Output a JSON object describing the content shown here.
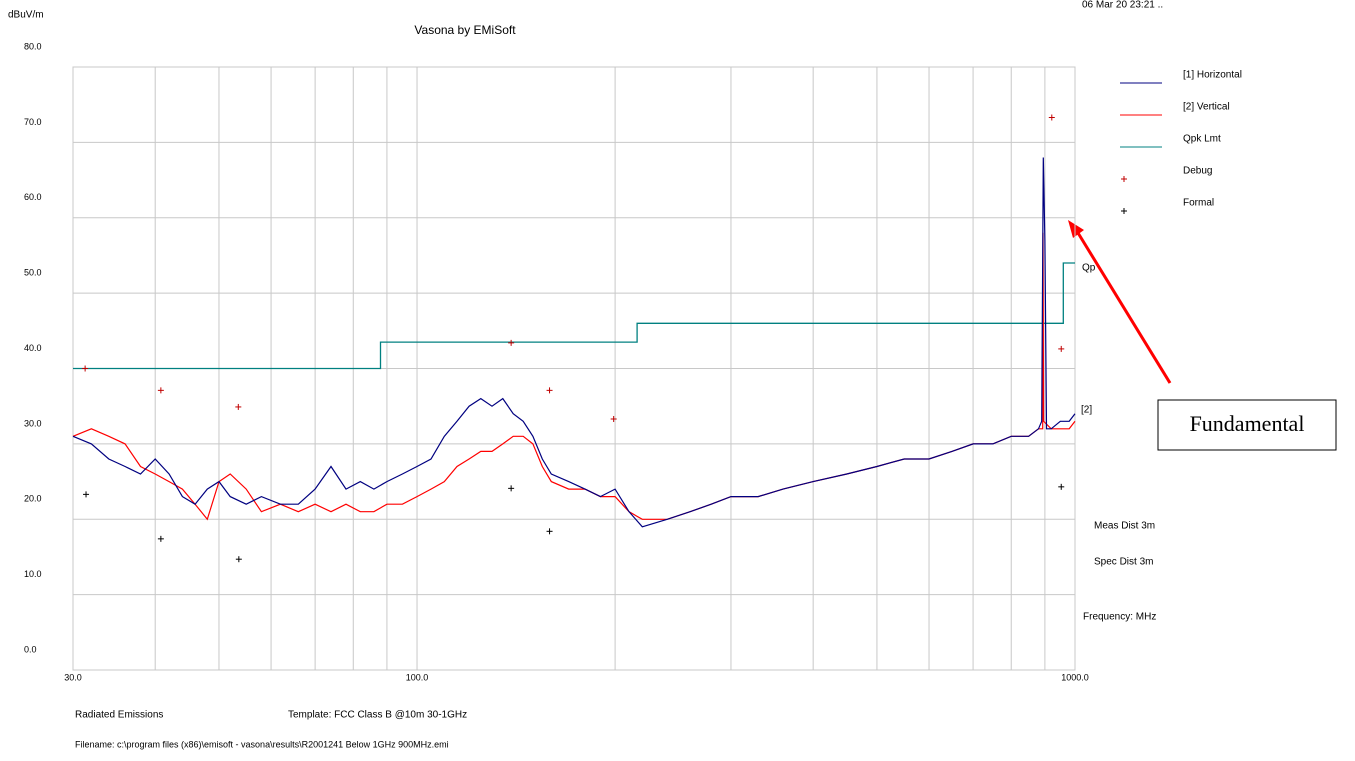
{
  "chart_data": {
    "type": "line",
    "title": "Vasona by EMiSoft",
    "timestamp": "06 Mar 20 23:21 ..",
    "y_label": "dBuV/m",
    "x_label": "Frequency: MHz",
    "xscale": "log",
    "xlim": [
      30,
      1000
    ],
    "ylim": [
      0,
      80
    ],
    "xticks": [
      {
        "value": 30,
        "label": "30.0"
      },
      {
        "value": 100,
        "label": "100.0"
      },
      {
        "value": 1000,
        "label": "1000.0"
      }
    ],
    "xminor": [
      40,
      50,
      60,
      70,
      80,
      90,
      200,
      300,
      400,
      500,
      600,
      700,
      800,
      900
    ],
    "yticks": [
      {
        "value": 0,
        "label": "0.0"
      },
      {
        "value": 10,
        "label": "10.0"
      },
      {
        "value": 20,
        "label": "20.0"
      },
      {
        "value": 30,
        "label": "30.0"
      },
      {
        "value": 40,
        "label": "40.0"
      },
      {
        "value": 50,
        "label": "50.0"
      },
      {
        "value": 60,
        "label": "60.0"
      },
      {
        "value": 70,
        "label": "70.0"
      },
      {
        "value": 80,
        "label": "80.0"
      }
    ],
    "grid": true,
    "series": [
      {
        "name": "[1] Horizontal",
        "color": "#000080",
        "style": "line",
        "x": [
          30,
          32,
          34,
          36,
          38,
          40,
          42,
          44,
          46,
          48,
          50,
          52,
          55,
          58,
          62,
          66,
          70,
          74,
          78,
          82,
          86,
          90,
          95,
          100,
          105,
          110,
          115,
          120,
          125,
          130,
          135,
          140,
          145,
          150,
          155,
          160,
          170,
          180,
          190,
          200,
          210,
          220,
          240,
          260,
          280,
          300,
          330,
          360,
          400,
          450,
          500,
          550,
          600,
          650,
          700,
          750,
          800,
          850,
          880,
          890,
          895,
          900,
          905,
          920,
          950,
          980,
          1000
        ],
        "values": [
          31,
          30,
          28,
          27,
          26,
          28,
          26,
          23,
          22,
          24,
          25,
          23,
          22,
          23,
          22,
          22,
          24,
          27,
          24,
          25,
          24,
          25,
          26,
          27,
          28,
          31,
          33,
          35,
          36,
          35,
          36,
          34,
          33,
          31,
          28,
          26,
          25,
          24,
          23,
          24,
          21,
          19,
          20,
          21,
          22,
          23,
          23,
          24,
          25,
          26,
          27,
          28,
          28,
          29,
          30,
          30,
          31,
          31,
          32,
          33,
          68,
          57,
          32,
          32,
          33,
          33,
          34
        ]
      },
      {
        "name": "[2] Vertical",
        "color": "#ff0000",
        "style": "line",
        "x": [
          30,
          32,
          34,
          36,
          38,
          40,
          42,
          44,
          46,
          48,
          50,
          52,
          55,
          58,
          62,
          66,
          70,
          74,
          78,
          82,
          86,
          90,
          95,
          100,
          105,
          110,
          115,
          120,
          125,
          130,
          135,
          140,
          145,
          150,
          155,
          160,
          170,
          180,
          190,
          200,
          210,
          220,
          240,
          260,
          280,
          300,
          330,
          360,
          400,
          450,
          500,
          550,
          600,
          650,
          700,
          750,
          800,
          850,
          880,
          890,
          893,
          894,
          896,
          920,
          950,
          980,
          1000
        ],
        "values": [
          31,
          32,
          31,
          30,
          27,
          26,
          25,
          24,
          22,
          20,
          25,
          26,
          24,
          21,
          22,
          21,
          22,
          21,
          22,
          21,
          21,
          22,
          22,
          23,
          24,
          25,
          27,
          28,
          29,
          29,
          30,
          31,
          31,
          30,
          27,
          25,
          24,
          24,
          23,
          23,
          21,
          20,
          20,
          21,
          22,
          23,
          23,
          24,
          25,
          26,
          27,
          28,
          28,
          29,
          30,
          30,
          31,
          31,
          32,
          32,
          32,
          58,
          33,
          32,
          32,
          32,
          33
        ]
      },
      {
        "name": "Qpk Lmt",
        "color": "#008080",
        "style": "line",
        "x": [
          30,
          88,
          88,
          216,
          216,
          960,
          960,
          1000
        ],
        "values": [
          40,
          40,
          43.5,
          43.5,
          46,
          46,
          54,
          54
        ]
      },
      {
        "name": "Debug",
        "color": "#c00000",
        "style": "marker",
        "x": [
          31.3,
          40.8,
          53.5,
          139,
          159,
          199,
          922,
          953
        ],
        "values": [
          40,
          37.1,
          34.9,
          43.4,
          37.1,
          33.3,
          73.3,
          42.6
        ]
      },
      {
        "name": "Formal",
        "color": "#000000",
        "style": "marker",
        "x": [
          31.4,
          40.8,
          53.6,
          139,
          159,
          953
        ],
        "values": [
          23.3,
          17.4,
          14.7,
          24.1,
          18.4,
          24.3
        ]
      }
    ],
    "label_qp": "Qp",
    "label_2": "[2]",
    "meas_dist": "Meas Dist 3m",
    "spec_dist": "Spec Dist 3m",
    "annotation": "Fundamental",
    "footer_left": "Radiated Emissions",
    "footer_template": "Template: FCC Class B @10m 30-1GHz",
    "filename": "Filename: c:\\program files (x86)\\emisoft - vasona\\results\\R2001241 Below 1GHz 900MHz.emi"
  }
}
